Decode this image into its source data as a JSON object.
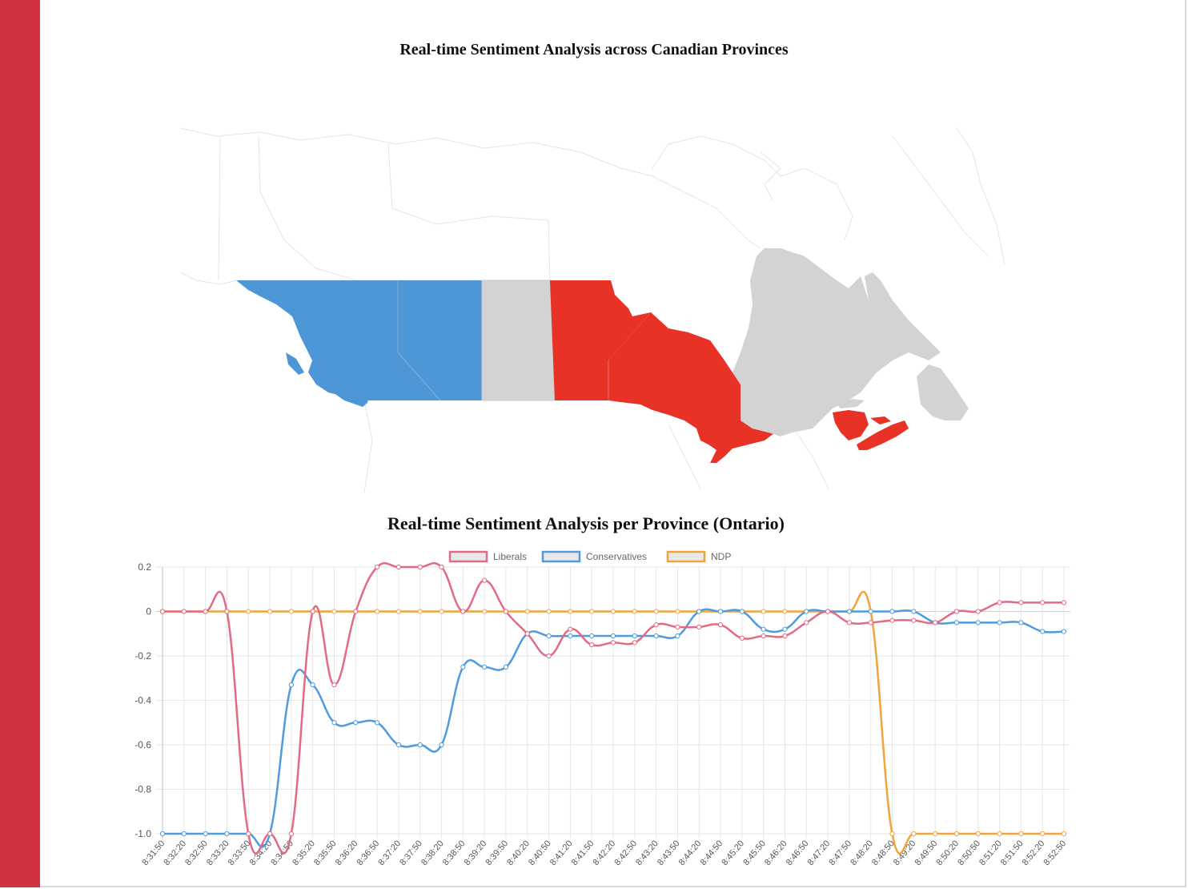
{
  "map": {
    "title": "Real-time Sentiment Analysis across Canadian Provinces",
    "colors": {
      "conservatives": "#4e97d6",
      "liberals": "#e93226",
      "neutral": "#d3d3d3"
    },
    "provinces": [
      {
        "name": "British Columbia",
        "party": "conservatives"
      },
      {
        "name": "Alberta",
        "party": "conservatives"
      },
      {
        "name": "Saskatchewan",
        "party": "neutral"
      },
      {
        "name": "Manitoba",
        "party": "liberals"
      },
      {
        "name": "Ontario",
        "party": "liberals"
      },
      {
        "name": "Quebec",
        "party": "neutral"
      },
      {
        "name": "Newfoundland and Labrador",
        "party": "neutral"
      },
      {
        "name": "New Brunswick",
        "party": "liberals"
      },
      {
        "name": "Nova Scotia",
        "party": "liberals"
      },
      {
        "name": "Prince Edward Island",
        "party": "liberals"
      }
    ]
  },
  "chart_data": {
    "type": "line",
    "title": "Real-time Sentiment Analysis per Province (Ontario)",
    "xlabel": "",
    "ylabel": "",
    "ylim": [
      -1.0,
      0.2
    ],
    "yticks": [
      0.2,
      0,
      -0.2,
      -0.4,
      -0.6,
      -0.8,
      -1.0
    ],
    "ytick_labels": [
      "0.2",
      "0",
      "-0.2",
      "-0.4",
      "-0.6",
      "-0.8",
      "-1.0"
    ],
    "grid": true,
    "legend": "top",
    "x": [
      "8:31:50",
      "8:32:20",
      "8:32:50",
      "8:33:20",
      "8:33:50",
      "8:34:20",
      "8:34:50",
      "8:35:20",
      "8:35:50",
      "8:36:20",
      "8:36:50",
      "8:37:20",
      "8:37:50",
      "8:38:20",
      "8:38:50",
      "8:39:20",
      "8:39:50",
      "8:40:20",
      "8:40:50",
      "8:41:20",
      "8:41:50",
      "8:42:20",
      "8:42:50",
      "8:43:20",
      "8:43:50",
      "8:44:20",
      "8:44:50",
      "8:45:20",
      "8:45:50",
      "8:46:20",
      "8:46:50",
      "8:47:20",
      "8:47:50",
      "8:48:20",
      "8:48:50",
      "8:49:20",
      "8:49:50",
      "8:50:20",
      "8:50:50",
      "8:51:20",
      "8:51:50",
      "8:52:20",
      "8:52:50"
    ],
    "series": [
      {
        "name": "Liberals",
        "color": "#e36a84",
        "values": [
          0,
          0,
          0,
          0,
          -1.0,
          -1.0,
          -1.0,
          0,
          -0.33,
          0,
          0.2,
          0.2,
          0.2,
          0.2,
          0,
          0.14,
          0,
          -0.1,
          -0.2,
          -0.08,
          -0.15,
          -0.14,
          -0.14,
          -0.06,
          -0.07,
          -0.07,
          -0.06,
          -0.12,
          -0.11,
          -0.11,
          -0.05,
          0,
          -0.05,
          -0.05,
          -0.04,
          -0.04,
          -0.05,
          0,
          0,
          0.04,
          0.04,
          0.04,
          0.04
        ]
      },
      {
        "name": "Conservatives",
        "color": "#4e9bde",
        "values": [
          -1.0,
          -1.0,
          -1.0,
          -1.0,
          -1.0,
          -1.0,
          -0.33,
          -0.33,
          -0.5,
          -0.5,
          -0.5,
          -0.6,
          -0.6,
          -0.6,
          -0.25,
          -0.25,
          -0.25,
          -0.1,
          -0.11,
          -0.11,
          -0.11,
          -0.11,
          -0.11,
          -0.11,
          -0.11,
          0,
          0,
          0,
          -0.08,
          -0.08,
          0,
          0,
          0,
          0,
          0,
          0,
          -0.05,
          -0.05,
          -0.05,
          -0.05,
          -0.05,
          -0.09,
          -0.09
        ]
      },
      {
        "name": "NDP",
        "color": "#f0a43a",
        "values": [
          0,
          0,
          0,
          0,
          0,
          0,
          0,
          0,
          0,
          0,
          0,
          0,
          0,
          0,
          0,
          0,
          0,
          0,
          0,
          0,
          0,
          0,
          0,
          0,
          0,
          0,
          0,
          0,
          0,
          0,
          0,
          0,
          0,
          0,
          -1.0,
          -1.0,
          -1.0,
          -1.0,
          -1.0,
          -1.0,
          -1.0,
          -1.0,
          -1.0
        ]
      }
    ]
  }
}
